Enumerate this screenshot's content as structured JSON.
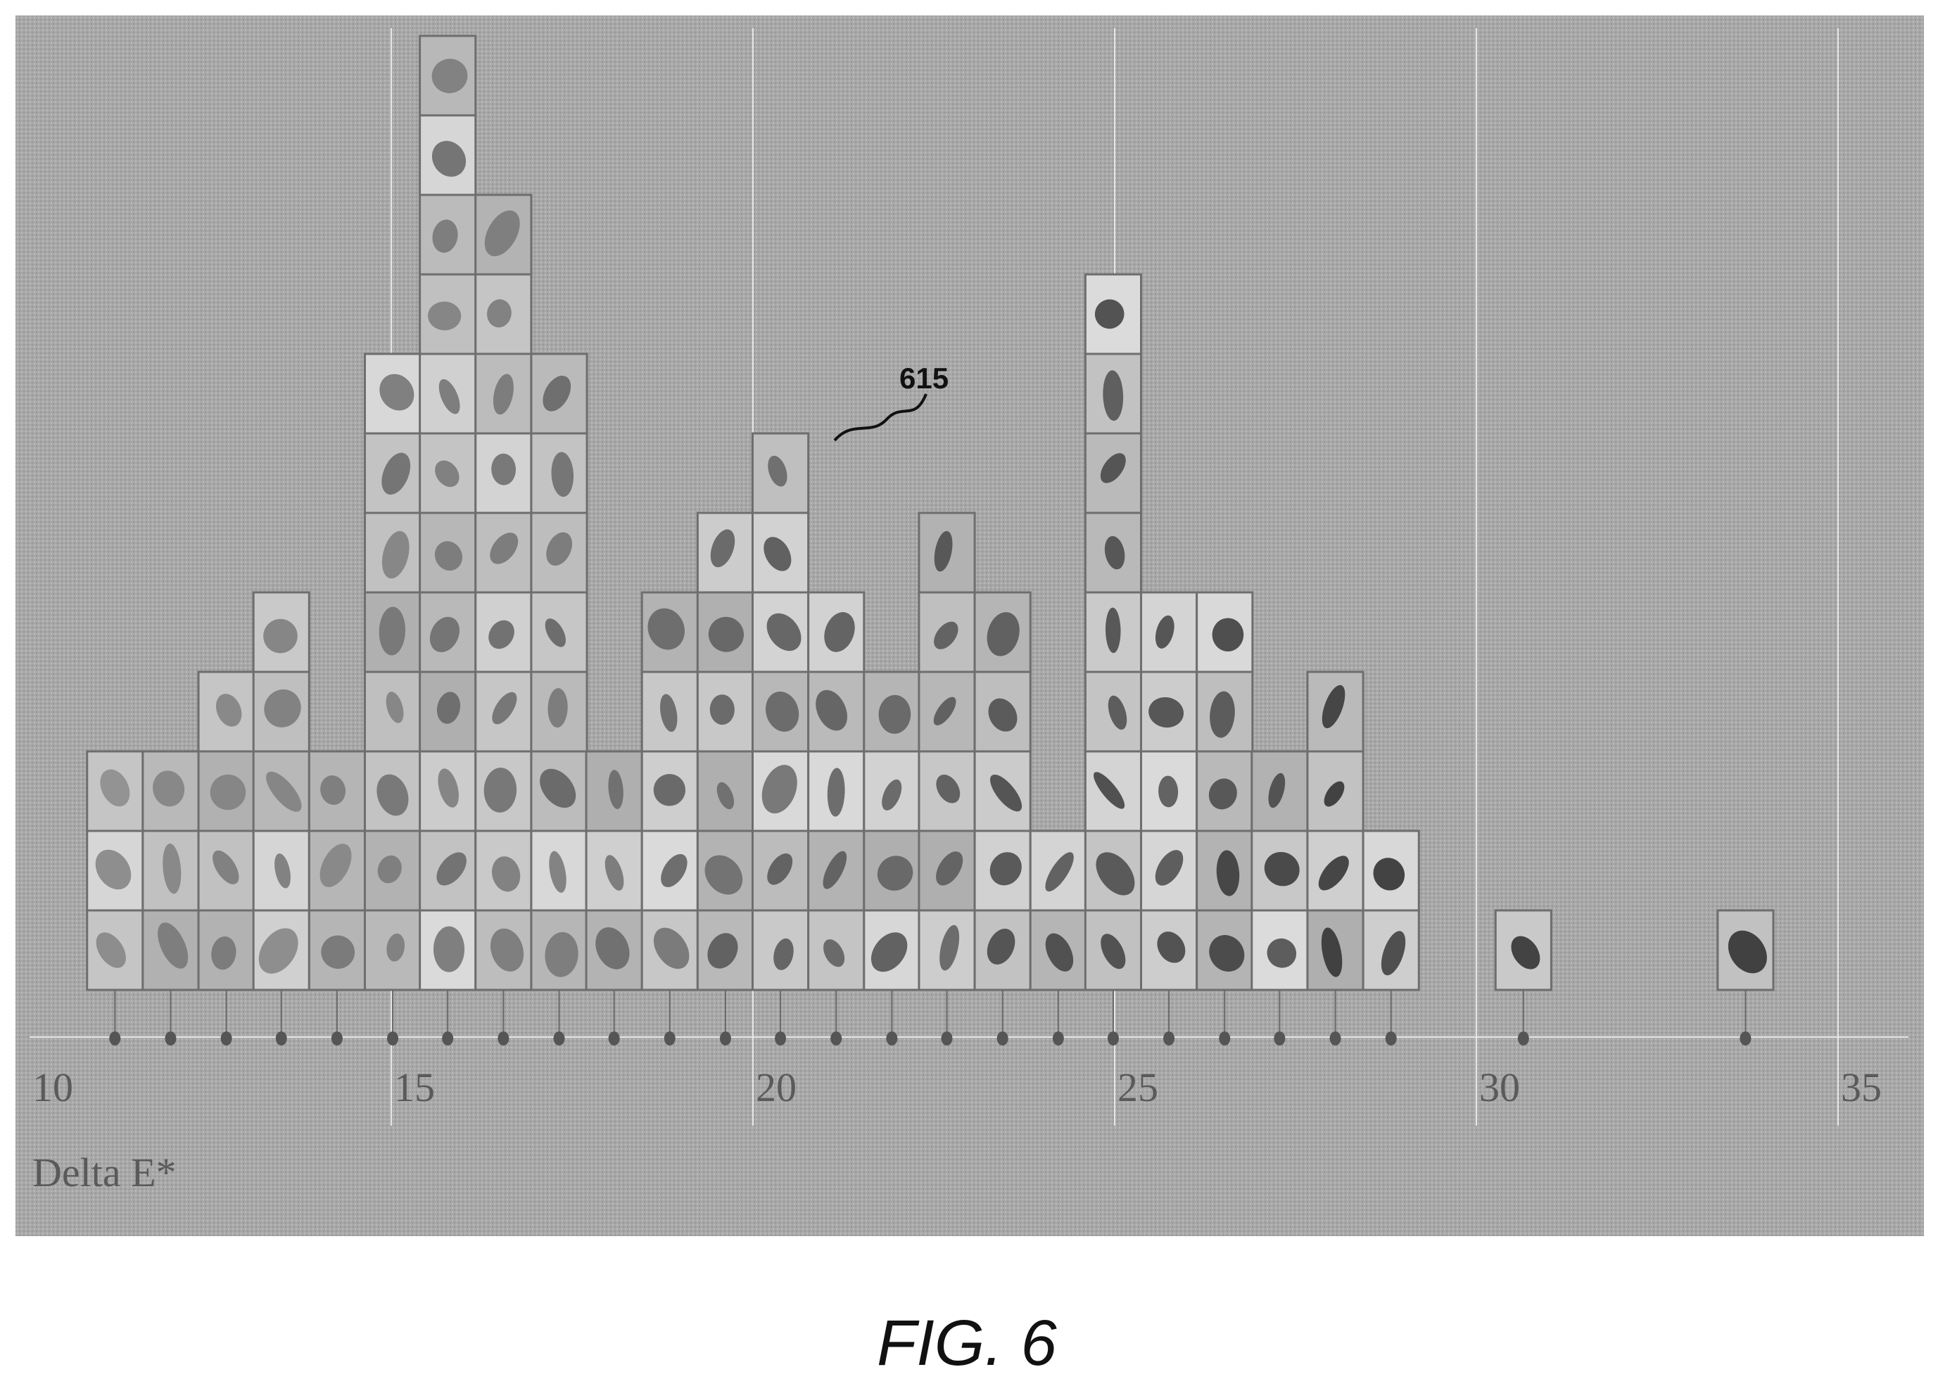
{
  "chart_data": {
    "type": "bar",
    "description_style": "image-tile histogram",
    "xlabel": "Delta E*",
    "xlim": [
      10,
      35
    ],
    "x_ticks": [
      "10",
      "15",
      "20",
      "25",
      "30",
      "35"
    ],
    "bin_width": 0.77,
    "bins": [
      {
        "x": 11.18,
        "count": 3
      },
      {
        "x": 11.95,
        "count": 3
      },
      {
        "x": 12.72,
        "count": 4
      },
      {
        "x": 13.48,
        "count": 5
      },
      {
        "x": 14.25,
        "count": 3
      },
      {
        "x": 15.02,
        "count": 8
      },
      {
        "x": 15.78,
        "count": 12
      },
      {
        "x": 16.55,
        "count": 10
      },
      {
        "x": 17.32,
        "count": 8
      },
      {
        "x": 18.08,
        "count": 3
      },
      {
        "x": 18.85,
        "count": 5
      },
      {
        "x": 19.62,
        "count": 6
      },
      {
        "x": 20.38,
        "count": 7
      },
      {
        "x": 21.15,
        "count": 5
      },
      {
        "x": 21.92,
        "count": 4
      },
      {
        "x": 22.68,
        "count": 6
      },
      {
        "x": 23.45,
        "count": 5
      },
      {
        "x": 24.22,
        "count": 2
      },
      {
        "x": 24.98,
        "count": 9
      },
      {
        "x": 25.75,
        "count": 5
      },
      {
        "x": 26.52,
        "count": 5
      },
      {
        "x": 27.28,
        "count": 3
      },
      {
        "x": 28.05,
        "count": 4
      },
      {
        "x": 28.82,
        "count": 2
      },
      {
        "x": 30.65,
        "count": 1
      },
      {
        "x": 33.72,
        "count": 1
      }
    ],
    "grid": true,
    "annotation": "615"
  },
  "figure_label": "FIG. 6",
  "colors": {
    "plot_bg": "#a9a9a9",
    "tile_border": "#6e6e6e",
    "gridline": "#e6e6e6",
    "spot": "#555555"
  }
}
